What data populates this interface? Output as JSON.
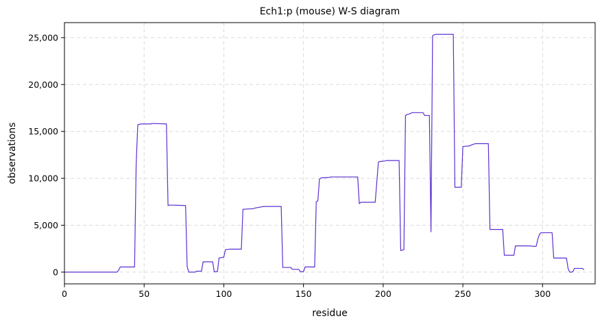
{
  "chart_data": {
    "type": "line",
    "title": "Ech1:p (mouse) W-S diagram",
    "xlabel": "residue",
    "ylabel": "observations",
    "xlim": [
      0,
      333
    ],
    "ylim": [
      -1250,
      26600
    ],
    "xticks": [
      0,
      50,
      100,
      150,
      200,
      250,
      300
    ],
    "xtick_labels": [
      "0",
      "50",
      "100",
      "150",
      "200",
      "250",
      "300"
    ],
    "yticks": [
      0,
      5000,
      10000,
      15000,
      20000,
      25000
    ],
    "ytick_labels": [
      "0",
      "5,000",
      "10,000",
      "15,000",
      "20,000",
      "25,000"
    ],
    "grid": true,
    "line_color": "#5b2fd1",
    "series": [
      {
        "x": [
          0,
          33,
          34,
          35,
          44,
          45,
          46,
          48,
          54,
          55,
          64,
          65,
          66,
          76,
          77,
          78,
          82,
          83,
          86,
          87,
          93,
          94,
          96,
          97,
          100,
          101,
          104,
          105,
          111,
          112,
          117,
          118,
          120,
          125,
          136,
          137,
          142,
          143,
          147,
          148,
          150,
          151,
          157,
          158,
          159,
          160,
          161,
          166,
          167,
          168,
          184,
          185,
          186,
          194,
          195,
          197,
          198,
          201,
          202,
          204,
          210,
          211,
          213,
          214,
          215,
          217,
          218,
          225,
          226,
          228,
          229,
          230,
          231,
          232,
          233,
          235,
          244,
          245,
          249,
          250,
          254,
          256,
          258,
          266,
          267,
          275,
          276,
          282,
          283,
          292,
          294,
          296,
          297,
          298,
          299,
          300,
          306,
          307,
          313,
          315,
          316,
          317,
          318,
          319,
          320,
          325,
          326
        ],
        "y": [
          0,
          0,
          200,
          550,
          550,
          11500,
          15700,
          15800,
          15800,
          15850,
          15800,
          7100,
          7150,
          7100,
          600,
          0,
          0,
          100,
          100,
          1100,
          1100,
          50,
          50,
          1500,
          1600,
          2400,
          2450,
          2450,
          2450,
          6700,
          6750,
          6750,
          6850,
          7000,
          7000,
          500,
          500,
          300,
          300,
          50,
          50,
          550,
          550,
          7500,
          7600,
          9900,
          10050,
          10100,
          10150,
          10150,
          10150,
          7300,
          7450,
          7450,
          7450,
          11750,
          11800,
          11850,
          11900,
          11900,
          11900,
          2300,
          2400,
          16700,
          16800,
          16900,
          17000,
          17000,
          16700,
          16700,
          16700,
          4300,
          25200,
          25300,
          25350,
          25350,
          25350,
          9050,
          9050,
          13400,
          13450,
          13600,
          13700,
          13700,
          4550,
          4550,
          1800,
          1800,
          2800,
          2800,
          2750,
          2750,
          3500,
          4000,
          4200,
          4200,
          4200,
          1500,
          1500,
          1500,
          400,
          0,
          0,
          50,
          400,
          400,
          250
        ]
      }
    ]
  }
}
